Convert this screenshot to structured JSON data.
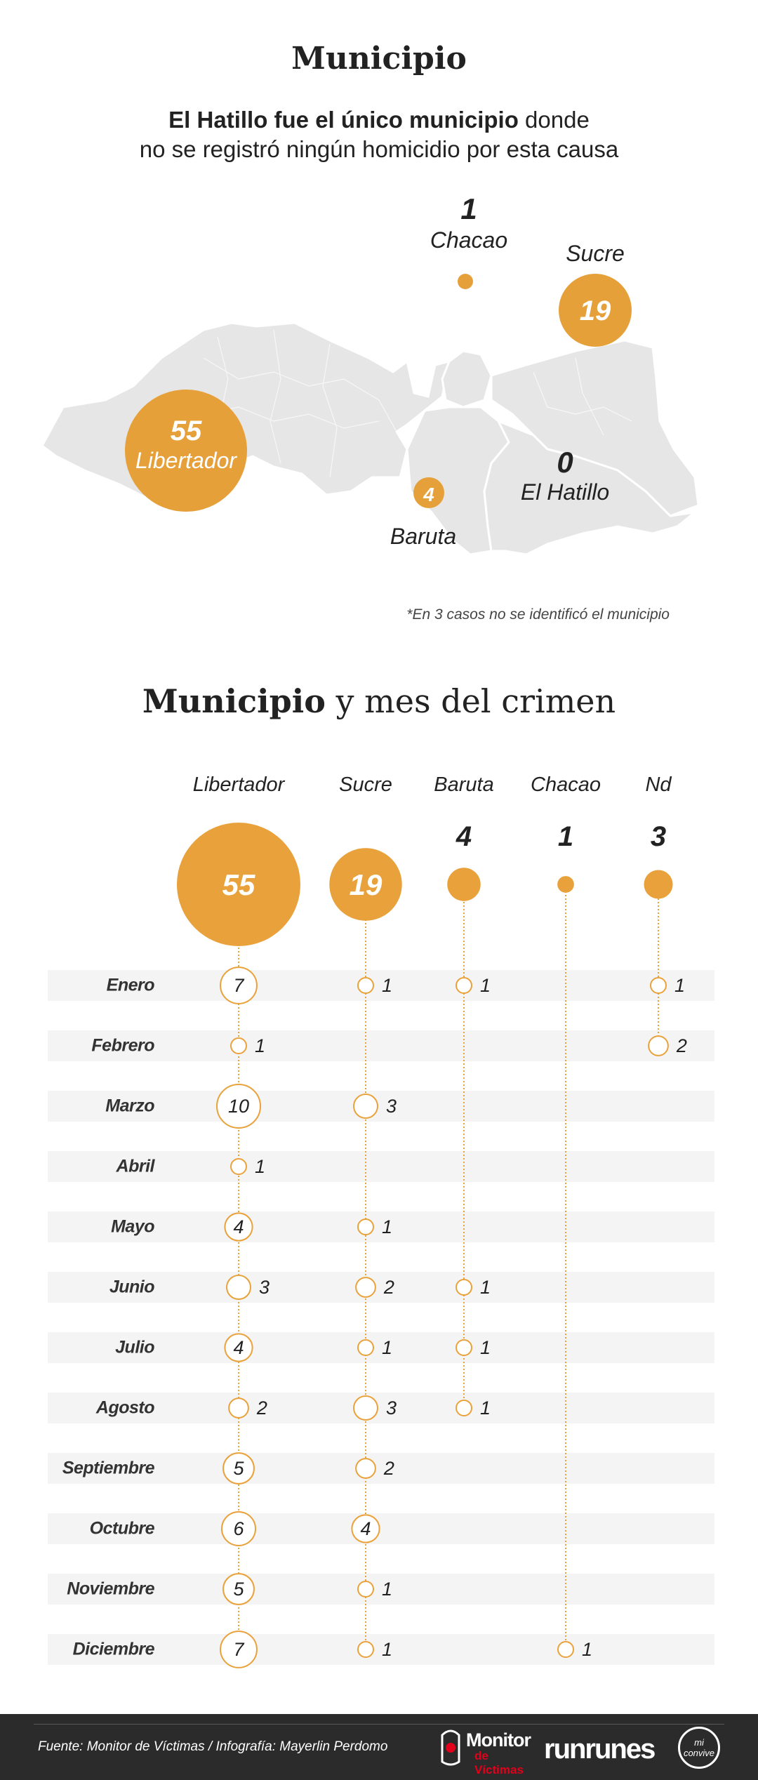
{
  "header": {
    "title": "Municipio",
    "subtitle_bold": "El Hatillo fue el único municipio",
    "subtitle_rest_1": " donde",
    "subtitle_line2": "no se registró ningún homicidio por esta causa"
  },
  "map": {
    "municipalities": [
      {
        "name": "Libertador",
        "value": "55"
      },
      {
        "name": "Chacao",
        "value": "1"
      },
      {
        "name": "Sucre",
        "value": "19"
      },
      {
        "name": "Baruta",
        "value": "4"
      },
      {
        "name": "El Hatillo",
        "value": "0"
      }
    ],
    "footnote": "*En 3 casos no se identificó el municipio"
  },
  "colors": {
    "accent": "#e9a23b",
    "accent_dark": "#e39a2e",
    "map_fill": "#e6e6e6",
    "band": "#f4f4f4",
    "footer_bg": "#2b2b2b"
  },
  "chart_data": {
    "type": "bubble-matrix",
    "title_bold": "Municipio",
    "title_rest": " y mes del crimen",
    "columns": [
      {
        "name": "Libertador",
        "total": 55
      },
      {
        "name": "Sucre",
        "total": 19
      },
      {
        "name": "Baruta",
        "total": 4
      },
      {
        "name": "Chacao",
        "total": 1
      },
      {
        "name": "Nd",
        "total": 3
      }
    ],
    "months": [
      "Enero",
      "Febrero",
      "Marzo",
      "Abril",
      "Mayo",
      "Junio",
      "Julio",
      "Agosto",
      "Septiembre",
      "Octubre",
      "Noviembre",
      "Diciembre"
    ],
    "values": [
      [
        7,
        1,
        1,
        null,
        1
      ],
      [
        1,
        null,
        null,
        null,
        2
      ],
      [
        10,
        3,
        null,
        null,
        null
      ],
      [
        1,
        null,
        null,
        null,
        null
      ],
      [
        4,
        1,
        null,
        null,
        null
      ],
      [
        3,
        2,
        1,
        null,
        null
      ],
      [
        4,
        1,
        1,
        null,
        null
      ],
      [
        2,
        3,
        1,
        null,
        null
      ],
      [
        5,
        2,
        null,
        null,
        null
      ],
      [
        6,
        4,
        null,
        null,
        null
      ],
      [
        5,
        1,
        null,
        null,
        null
      ],
      [
        7,
        1,
        null,
        1,
        null
      ]
    ]
  },
  "footer": {
    "source": "Fuente: Monitor de Víctimas / Infografía: Mayerlin Perdomo",
    "logo_monitor_1": "Monitor",
    "logo_monitor_2": "de Víctimas",
    "logo_runrunes": "runrunes",
    "logo_miconvive": "mi convive"
  }
}
